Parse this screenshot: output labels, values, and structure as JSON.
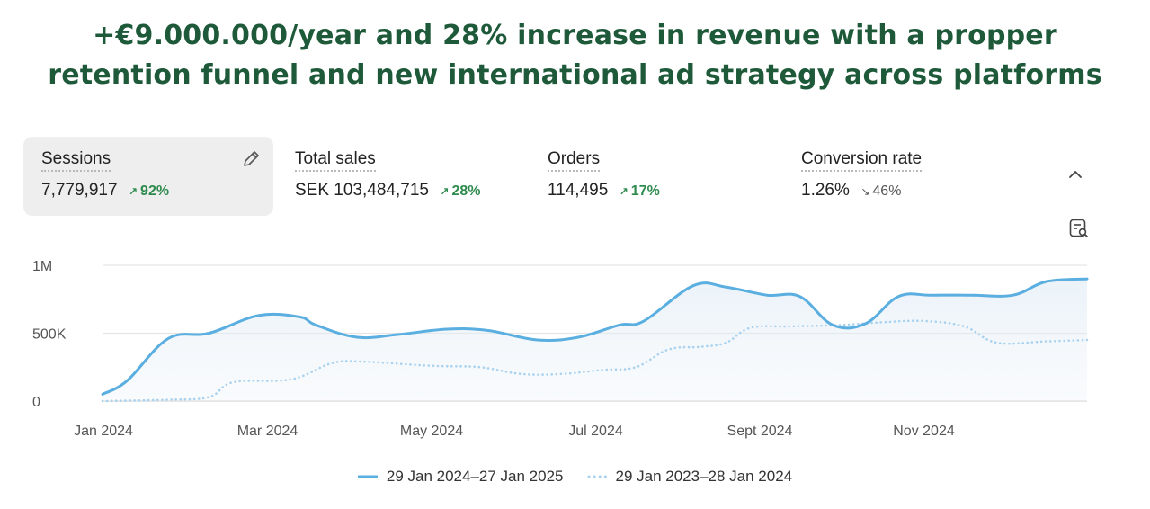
{
  "headline": {
    "line1": "+€9.000.000/year and 28% increase in revenue with a propper",
    "line2": "retention funnel and new international ad strategy across platforms"
  },
  "metrics": [
    {
      "label": "Sessions",
      "value": "7,779,917",
      "change": "92%",
      "direction": "up"
    },
    {
      "label": "Total sales",
      "value": "SEK 103,484,715",
      "change": "28%",
      "direction": "up"
    },
    {
      "label": "Orders",
      "value": "114,495",
      "change": "17%",
      "direction": "up"
    },
    {
      "label": "Conversion rate",
      "value": "1.26%",
      "change": "46%",
      "direction": "down"
    }
  ],
  "icons": {
    "edit": "pencil-icon",
    "collapse": "chevron-up-icon",
    "report": "report-search-icon"
  },
  "colors": {
    "headline": "#1e5a3a",
    "current_series": "#5aaee0",
    "previous_series": "#a9d2ef",
    "positive": "#2e8b4e"
  },
  "chart_data": {
    "type": "line",
    "title": "Sessions",
    "xlabel": "",
    "ylabel": "",
    "ylim": [
      0,
      1000000
    ],
    "ytick_values": [
      0,
      500000,
      1000000
    ],
    "ytick_labels": [
      "0",
      "500K",
      "1M"
    ],
    "xtick_labels": [
      "Jan 2024",
      "Mar 2024",
      "May 2024",
      "Jul 2024",
      "Sept 2024",
      "Nov 2024"
    ],
    "xlim": [
      0,
      12
    ],
    "xtick_values": [
      0,
      2,
      4,
      6,
      8,
      10
    ],
    "legend_position": "bottom-center",
    "series": [
      {
        "name": "29 Jan 2024–27 Jan 2025",
        "style": "solid",
        "x": [
          0,
          0.3,
          0.8,
          1.3,
          1.9,
          2.4,
          2.6,
          3.1,
          3.6,
          4.2,
          4.7,
          5.3,
          5.8,
          6.3,
          6.6,
          7.2,
          7.6,
          8.1,
          8.5,
          8.9,
          9.3,
          9.7,
          10.1,
          10.6,
          11.1,
          11.5,
          12.0
        ],
        "values": [
          50000,
          150000,
          460000,
          500000,
          630000,
          620000,
          560000,
          470000,
          490000,
          530000,
          520000,
          450000,
          470000,
          560000,
          590000,
          850000,
          840000,
          780000,
          770000,
          560000,
          570000,
          770000,
          780000,
          780000,
          780000,
          880000,
          900000
        ]
      },
      {
        "name": "29 Jan 2023–28 Jan 2024",
        "style": "dotted",
        "x": [
          0,
          0.8,
          1.3,
          1.6,
          2.3,
          2.8,
          3.2,
          4.0,
          4.6,
          5.1,
          5.6,
          6.1,
          6.5,
          6.9,
          7.3,
          7.6,
          7.9,
          8.4,
          9.0,
          9.5,
          10.0,
          10.5,
          10.9,
          11.5,
          12.0
        ],
        "values": [
          0,
          10000,
          30000,
          140000,
          160000,
          280000,
          290000,
          260000,
          250000,
          200000,
          200000,
          230000,
          250000,
          380000,
          400000,
          430000,
          540000,
          550000,
          560000,
          580000,
          590000,
          550000,
          430000,
          440000,
          450000
        ]
      }
    ]
  }
}
